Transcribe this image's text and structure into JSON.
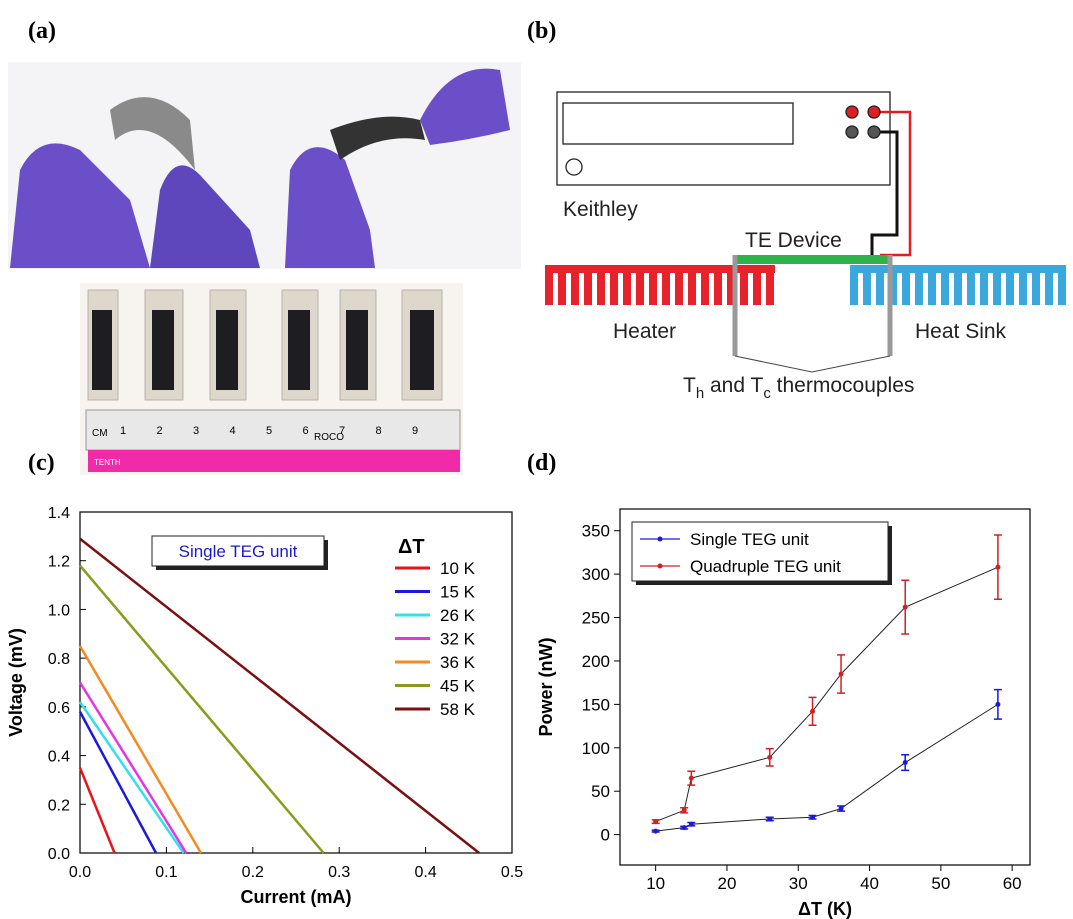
{
  "panels": {
    "a": "(a)",
    "b": "(b)",
    "c": "(c)",
    "d": "(d)"
  },
  "photo": {
    "ruler_unit": "CM",
    "ruler_numbers": [
      "1",
      "2",
      "3",
      "4",
      "5",
      "6",
      "7",
      "8",
      "9"
    ],
    "ruler_brand": "ROCO",
    "ruler_tenth": "TENTH"
  },
  "diagram": {
    "meter": "Keithley",
    "device": "TE Device",
    "heater": "Heater",
    "sink": "Heat Sink",
    "thermo": [
      "T",
      "h",
      " and T",
      "c",
      " thermocouples"
    ]
  },
  "chart_data": [
    {
      "type": "line",
      "xlabel": "Current (mA)",
      "ylabel": "Voltage (mV)",
      "annotation": "Single TEG unit",
      "legend_title": "ΔT",
      "xlim": [
        0,
        0.5
      ],
      "ylim": [
        0,
        1.4
      ],
      "xticks": [
        {
          "value": 0,
          "label": "0.0"
        },
        0.1,
        0.2,
        0.3,
        0.4,
        0.5
      ],
      "yticks": [
        {
          "value": 0,
          "label": "0.0"
        },
        0.2,
        0.4,
        0.6,
        0.8,
        {
          "value": 1,
          "label": "1.0"
        },
        1.2,
        1.4
      ],
      "series": [
        {
          "name": "10 K",
          "color": "#e8141c",
          "x": [
            0,
            0.04
          ],
          "values": [
            0.35,
            0
          ]
        },
        {
          "name": "15 K",
          "color": "#1a1adb",
          "x": [
            0,
            0.088
          ],
          "values": [
            0.58,
            0
          ]
        },
        {
          "name": "26 K",
          "color": "#33e0e8",
          "x": [
            0,
            0.12
          ],
          "values": [
            0.62,
            0
          ]
        },
        {
          "name": "32 K",
          "color": "#e633e6",
          "x": [
            0,
            0.123
          ],
          "values": [
            0.7,
            0
          ]
        },
        {
          "name": "36 K",
          "color": "#f58a1f",
          "x": [
            0,
            0.14
          ],
          "values": [
            0.85,
            0
          ]
        },
        {
          "name": "45 K",
          "color": "#8a9a1a",
          "x": [
            0,
            0.282
          ],
          "values": [
            1.18,
            0
          ]
        },
        {
          "name": "58 K",
          "color": "#7a1010",
          "x": [
            0,
            0.462
          ],
          "values": [
            1.29,
            0
          ]
        }
      ]
    },
    {
      "type": "line",
      "xlabel": "ΔT (K)",
      "ylabel": "Power (nW)",
      "xlim": [
        5,
        62.5
      ],
      "ylim": [
        -35,
        375
      ],
      "xticks": [
        10,
        20,
        30,
        40,
        50,
        60
      ],
      "yticks": [
        0,
        50,
        100,
        150,
        200,
        250,
        300,
        350
      ],
      "x": [
        10,
        14,
        15,
        26,
        32,
        36,
        45,
        58
      ],
      "series": [
        {
          "name": "Single TEG unit",
          "color": "#1a1adb",
          "values": [
            4,
            8,
            12,
            18,
            20,
            30,
            83,
            150
          ],
          "errors": [
            1,
            1.5,
            2,
            2,
            2,
            3,
            9,
            17
          ]
        },
        {
          "name": "Quadruple TEG unit",
          "color": "#d42020",
          "values": [
            15,
            28,
            65,
            89,
            142,
            185,
            262,
            308
          ],
          "errors": [
            2,
            3,
            8,
            10,
            16,
            22,
            31,
            37
          ]
        }
      ]
    }
  ]
}
